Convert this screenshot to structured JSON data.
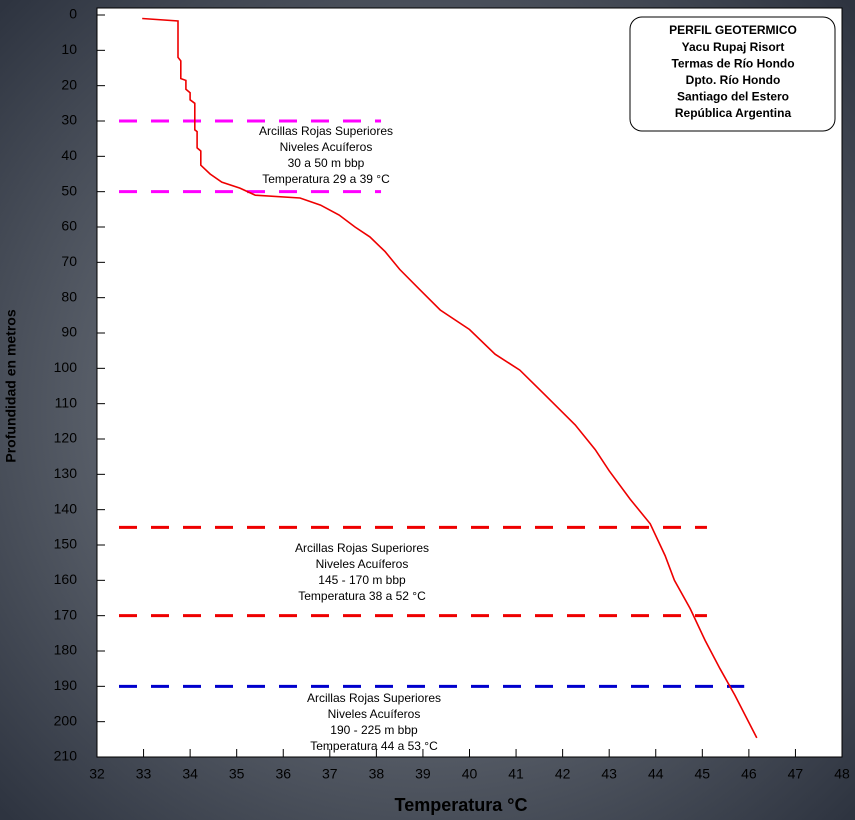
{
  "chart_data": {
    "type": "line",
    "xlabel": "Temperatura °C",
    "ylabel": "Profundidad en metros",
    "color": "#ee0000",
    "x": [
      32.97,
      33.74,
      33.74,
      33.8,
      33.8,
      33.91,
      33.91,
      34.0,
      34.0,
      34.1,
      34.1,
      34.15,
      34.15,
      34.23,
      34.23,
      34.43,
      34.68,
      35.07,
      35.4,
      36.36,
      36.8,
      37.2,
      37.54,
      37.86,
      38.19,
      38.5,
      38.94,
      39.37,
      40.0,
      40.55,
      41.08,
      41.62,
      42.27,
      42.7,
      43.0,
      43.45,
      43.88,
      44.2,
      44.4,
      44.74,
      45.06,
      45.38,
      45.7,
      46.07,
      46.17
    ],
    "values": [
      1,
      1.7,
      12,
      13,
      18,
      18.5,
      21,
      22,
      24,
      25,
      32.5,
      33,
      37.6,
      38.5,
      42.5,
      45,
      47.3,
      49,
      51,
      51.8,
      53.8,
      56.6,
      60,
      62.8,
      67,
      72,
      77.8,
      83.5,
      89,
      96,
      100.5,
      107.5,
      116,
      123,
      129,
      137,
      144,
      153,
      160,
      168,
      177,
      185,
      192.5,
      202,
      204.6
    ],
    "xlim": [
      32,
      48
    ],
    "ylim": [
      0,
      210
    ],
    "inverted_y": true,
    "xticks": [
      32,
      33,
      34,
      35,
      36,
      37,
      38,
      39,
      40,
      41,
      42,
      43,
      44,
      45,
      46,
      47,
      48
    ],
    "yticks": [
      0,
      10,
      20,
      30,
      40,
      50,
      60,
      70,
      80,
      90,
      100,
      110,
      120,
      130,
      140,
      150,
      160,
      170,
      180,
      190,
      200,
      210
    ],
    "reference_lines": [
      {
        "depth": 30,
        "color": "#ff00ff",
        "xrange": [
          32,
          38.1
        ]
      },
      {
        "depth": 50,
        "color": "#ff00ff",
        "xrange": [
          32,
          38.1
        ]
      },
      {
        "depth": 145,
        "color": "#ee0000",
        "xrange": [
          32,
          45.1
        ]
      },
      {
        "depth": 170,
        "color": "#ee0000",
        "xrange": [
          32,
          45.1
        ]
      },
      {
        "depth": 190,
        "color": "#0000cc",
        "xrange": [
          32,
          45.9
        ]
      }
    ],
    "info_box": [
      "PERFIL GEOTERMICO",
      "Yacu Rupaj Risort",
      "Termas de Río Hondo",
      "Dpto. Río Hondo",
      "Santiago del Estero",
      "República Argentina"
    ],
    "annotations": [
      [
        "Arcillas Rojas Superiores",
        "Niveles Acuíferos",
        "30 a 50 m bbp",
        "Temperatura 29 a 39 °C"
      ],
      [
        "Arcillas Rojas Superiores",
        "Niveles Acuíferos",
        "145 - 170 m bbp",
        "Temperatura 38 a 52 °C"
      ],
      [
        "Arcillas Rojas Superiores",
        "Niveles Acuíferos",
        "190 - 225 m bbp",
        "Temperatura 44 a 53 °C"
      ]
    ]
  }
}
